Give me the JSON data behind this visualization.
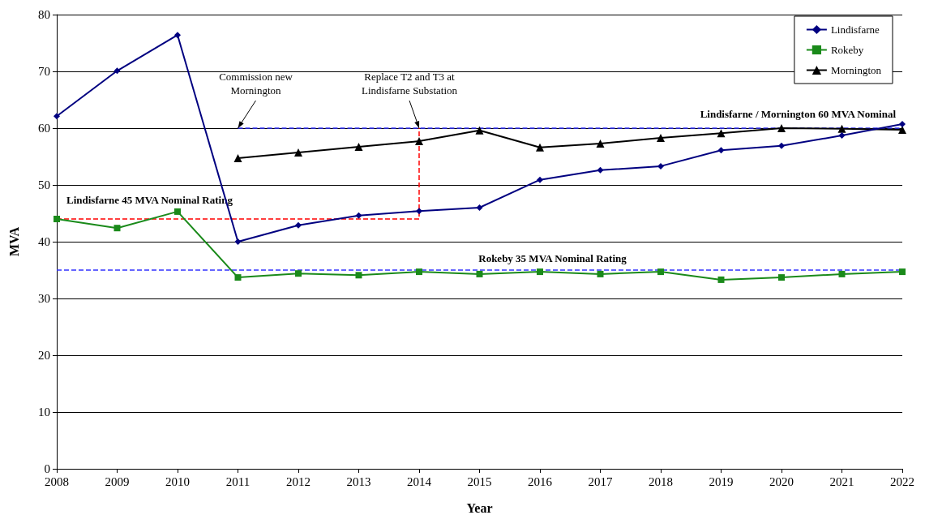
{
  "chart_data": {
    "type": "line",
    "xlabel": "Year",
    "ylabel": "MVA",
    "x": [
      2008,
      2009,
      2010,
      2011,
      2012,
      2013,
      2014,
      2015,
      2016,
      2017,
      2018,
      2019,
      2020,
      2021,
      2022
    ],
    "xlim": [
      2008,
      2022
    ],
    "xticks": [
      2008,
      2009,
      2010,
      2011,
      2012,
      2013,
      2014,
      2015,
      2016,
      2017,
      2018,
      2019,
      2020,
      2021,
      2022
    ],
    "ylim": [
      0,
      80
    ],
    "yticks": [
      0,
      10,
      20,
      30,
      40,
      50,
      60,
      70,
      80
    ],
    "grid": "y",
    "legend": "top right",
    "line_style": "solid",
    "series": [
      {
        "name": "Lindisfarne",
        "color": "#000080",
        "marker": "diamond",
        "values": [
          62.1,
          70.1,
          76.4,
          40,
          42.9,
          44.6,
          45.4,
          46,
          50.9,
          52.6,
          53.3,
          56.1,
          56.9,
          58.7,
          60.7
        ]
      },
      {
        "name": "Rokeby",
        "color": "#1a8a1a",
        "marker": "square",
        "values": [
          44,
          42.4,
          45.3,
          33.7,
          34.4,
          34.1,
          34.7,
          34.3,
          34.7,
          34.3,
          34.7,
          33.3,
          33.7,
          34.3,
          34.7
        ]
      },
      {
        "name": "Mornington",
        "color": "#000000",
        "marker": "triangle",
        "values": [
          null,
          null,
          null,
          54.7,
          55.7,
          56.7,
          57.7,
          59.6,
          56.6,
          57.3,
          58.3,
          59.1,
          60,
          59.9,
          59.7
        ]
      },
      {
        "color": "#3333ff",
        "marker": "none",
        "line_style": "dashed",
        "x": [
          2011,
          2022
        ],
        "values": [
          60,
          60
        ]
      },
      {
        "color": "#ff0000",
        "marker": "none",
        "line_style": "dashed",
        "x": [
          2008,
          2014,
          2014
        ],
        "values": [
          44,
          44,
          60
        ]
      }
    ],
    "ref_lines": [
      {
        "axis": "y",
        "value": 35,
        "label": "Rokeby 35 MVA Nominal Rating",
        "color": "#3333ff",
        "line_style": "dashed"
      }
    ],
    "annotations": [
      {
        "text": "Commission new\nMornington",
        "x": 2011,
        "y": 60
      },
      {
        "text": "Replace T2 and T3 at\nLindisfarne Substation",
        "x": 2014,
        "y": 60
      },
      {
        "text": "Lindisfarne / Mornington 60 MVA Nominal",
        "x": 2022,
        "y": 60
      },
      {
        "text": "Lindisfarne 45 MVA Nominal Rating",
        "x": 2008,
        "y": 44
      }
    ]
  }
}
